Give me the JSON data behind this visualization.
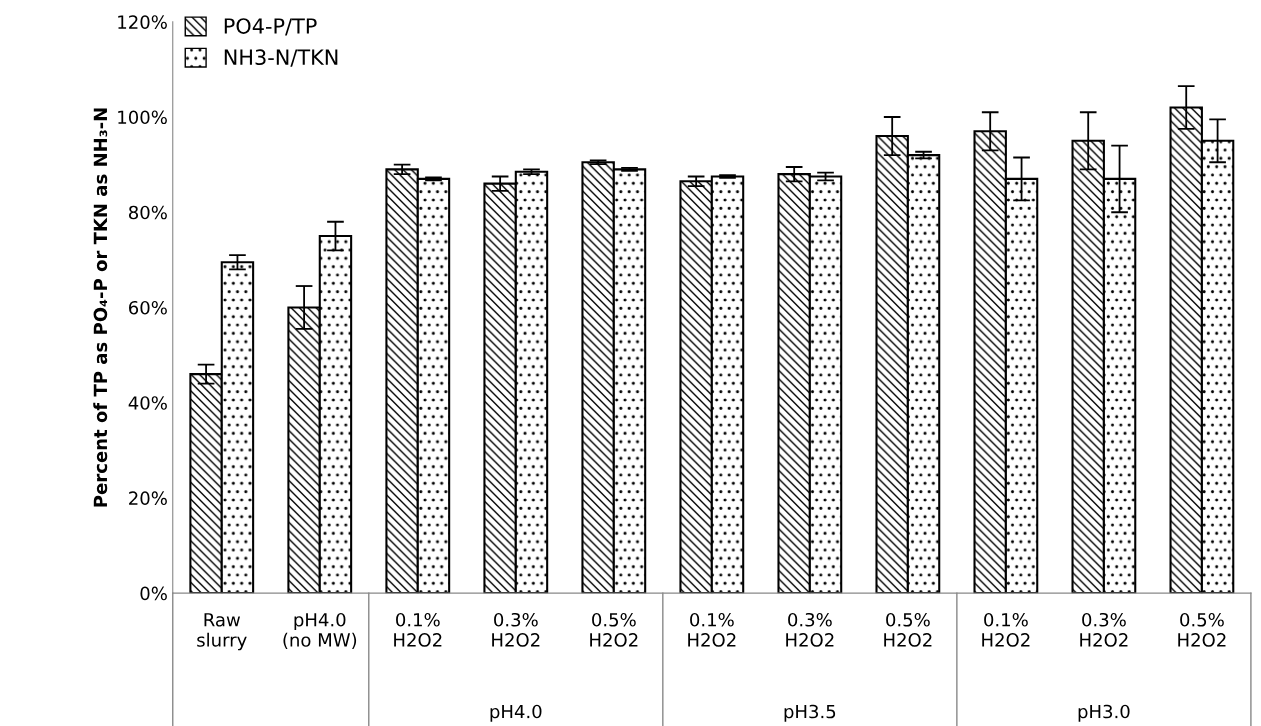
{
  "chart_data": {
    "type": "bar",
    "ylabel": "Percent of TP as PO₄-P or TKN as NH₃-N",
    "categories": [
      "Raw\nslurry",
      "pH4.0\n(no MW)",
      "0.1%\nH2O2",
      "0.3%\nH2O2",
      "0.5%\nH2O2",
      "0.1%\nH2O2",
      "0.3%\nH2O2",
      "0.5%\nH2O2",
      "0.1%\nH2O2",
      "0.3%\nH2O2",
      "0.5%\nH2O2"
    ],
    "series": [
      {
        "name": "PO4-P/TP",
        "color": "#000000",
        "values": [
          46,
          60,
          89,
          86,
          90.5,
          86.5,
          88,
          96,
          97,
          95,
          102
        ],
        "errors": [
          2,
          4.5,
          1,
          1.5,
          0.4,
          1,
          1.5,
          4,
          4,
          6,
          4.5
        ]
      },
      {
        "name": "NH3-N/TKN",
        "color": "#000000",
        "values": [
          69.5,
          75,
          87,
          88.5,
          89,
          87.5,
          87.5,
          92,
          87,
          87,
          95
        ],
        "errors": [
          1.5,
          3,
          0.3,
          0.5,
          0.3,
          0.3,
          0.8,
          0.7,
          4.5,
          7,
          4.5
        ]
      }
    ],
    "annotations": [
      "pH4.0",
      "pH3.5",
      "pH3.0"
    ],
    "ylim": [
      0,
      120
    ],
    "yticks": [
      {
        "value": 0,
        "label": "0%"
      },
      {
        "value": 20,
        "label": "20%"
      },
      {
        "value": 40,
        "label": "40%"
      },
      {
        "value": 60,
        "label": "60%"
      },
      {
        "value": 80,
        "label": "80%"
      },
      {
        "value": 100,
        "label": "100%"
      },
      {
        "value": 120,
        "label": "120%"
      }
    ],
    "legend": "top left",
    "grid": false
  }
}
